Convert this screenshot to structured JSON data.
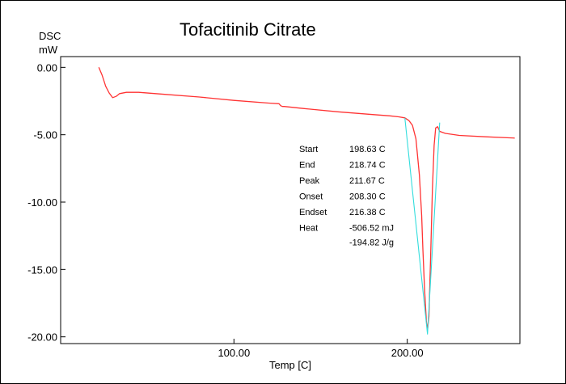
{
  "chart_data": {
    "type": "line",
    "title": "Tofacitinib Citrate",
    "ylabel": "DSC",
    "yunit": "mW",
    "xlabel": "Temp [C]",
    "xlim": [
      0,
      265
    ],
    "ylim": [
      -20.5,
      0.8
    ],
    "xticks": [
      100,
      200
    ],
    "xtick_labels": [
      "100.00",
      "200.00"
    ],
    "yticks": [
      0,
      -5,
      -10,
      -15,
      -20
    ],
    "ytick_labels": [
      "0.00",
      "-5.00",
      "-10.00",
      "-15.00",
      "-20.00"
    ],
    "grid": false,
    "series": [
      {
        "color": "#ff3333",
        "x": [
          22,
          24,
          26,
          28,
          30,
          32,
          34,
          38,
          45,
          60,
          80,
          100,
          120,
          126,
          127,
          128,
          129,
          140,
          160,
          180,
          190,
          195,
          198.6,
          201,
          203,
          205,
          207,
          208.3,
          209,
          210,
          211,
          211.67,
          212.5,
          213.5,
          214.5,
          215.5,
          216.4,
          217.5,
          218.7,
          222,
          230,
          245,
          262
        ],
        "y": [
          0.0,
          -0.6,
          -1.4,
          -1.9,
          -2.25,
          -2.15,
          -1.95,
          -1.85,
          -1.85,
          -2.0,
          -2.2,
          -2.45,
          -2.65,
          -2.7,
          -2.85,
          -2.9,
          -2.9,
          -3.05,
          -3.3,
          -3.5,
          -3.6,
          -3.67,
          -3.75,
          -3.95,
          -4.3,
          -5.3,
          -8.0,
          -11.0,
          -13.5,
          -16.5,
          -18.8,
          -19.5,
          -18.5,
          -14.0,
          -9.0,
          -5.8,
          -4.5,
          -4.4,
          -4.75,
          -4.9,
          -5.05,
          -5.15,
          -5.25
        ]
      },
      {
        "color": "#33dddd",
        "x": [
          198.63,
          211.67,
          218.74
        ],
        "y": [
          -3.75,
          -19.8,
          -4.1
        ]
      }
    ],
    "annotations": [
      {
        "label": "Start",
        "value": "198.63",
        "unit": "C"
      },
      {
        "label": "End",
        "value": "218.74",
        "unit": "C"
      },
      {
        "label": "Peak",
        "value": "211.67",
        "unit": "C"
      },
      {
        "label": "Onset",
        "value": "208.30",
        "unit": "C"
      },
      {
        "label": "Endset",
        "value": "216.38",
        "unit": "C"
      },
      {
        "label": "Heat",
        "value": "-506.52",
        "unit": "mJ"
      },
      {
        "label": "",
        "value": "-194.82",
        "unit": "J/g"
      }
    ]
  },
  "colors": {
    "curve": "#ff3333",
    "analysis": "#33dddd",
    "axis": "#000000"
  }
}
